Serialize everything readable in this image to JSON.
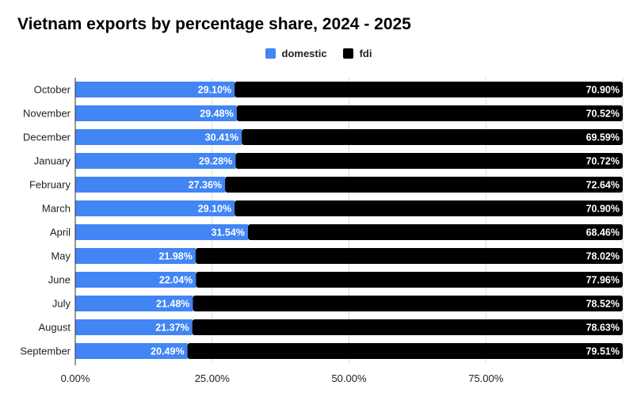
{
  "chart_data": {
    "type": "bar",
    "orientation": "horizontal",
    "stacked": true,
    "title": "Vietnam exports by percentage share, 2024 - 2025",
    "xlabel": "",
    "ylabel": "",
    "xlim": [
      0,
      100
    ],
    "x_ticks": [
      "0.00%",
      "25.00%",
      "50.00%",
      "75.00%"
    ],
    "grid": true,
    "legend_position": "top",
    "categories": [
      "October",
      "November",
      "December",
      "January",
      "February",
      "March",
      "April",
      "May",
      "June",
      "July",
      "August",
      "September"
    ],
    "series": [
      {
        "name": "domestic",
        "color": "#4285f4",
        "values": [
          29.1,
          29.48,
          30.41,
          29.28,
          27.36,
          29.1,
          31.54,
          21.98,
          22.04,
          21.48,
          21.37,
          20.49
        ]
      },
      {
        "name": "fdi",
        "color": "#000000",
        "values": [
          70.9,
          70.52,
          69.59,
          70.72,
          72.64,
          70.9,
          68.46,
          78.02,
          77.96,
          78.52,
          78.63,
          79.51
        ]
      }
    ]
  }
}
